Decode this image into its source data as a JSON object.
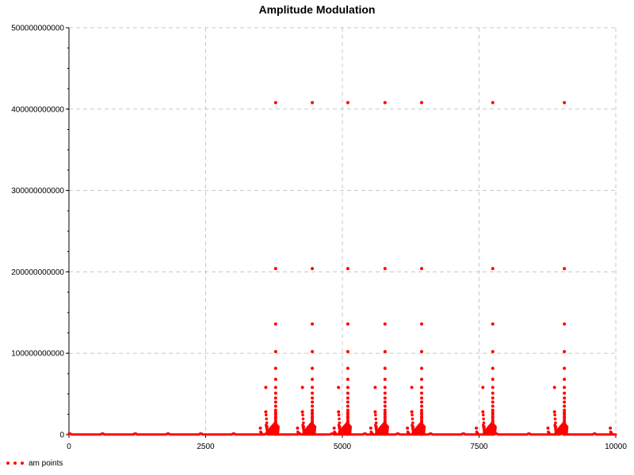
{
  "chart_data": {
    "type": "scatter",
    "title": "Amplitude Modulation",
    "xlabel": "",
    "ylabel": "",
    "xlim": [
      0,
      10000
    ],
    "ylim": [
      0,
      500000000000
    ],
    "x_ticks": [
      0,
      2500,
      5000,
      7500,
      10000
    ],
    "y_ticks": [
      0,
      100000000000,
      200000000000,
      300000000000,
      400000000000,
      500000000000
    ],
    "x_tick_labels": [
      "0",
      "2500",
      "5000",
      "7500",
      "10000"
    ],
    "y_tick_labels": [
      "0",
      "100000000000",
      "200000000000",
      "300000000000",
      "400000000000",
      "500000000000"
    ],
    "grid": true,
    "legend_position": "bottom-left",
    "color": "#ff0000",
    "series": [
      {
        "name": "am points",
        "clusters_x": [
          3780,
          4450,
          5100,
          5780,
          6450,
          7750,
          9060
        ],
        "spike_values": [
          408000000000,
          204000000000,
          136000000000,
          102000000000,
          81500000000,
          68000000000,
          58000000000,
          51000000000,
          45000000000,
          40000000000,
          35000000000,
          30000000000,
          27000000000,
          25000000000,
          22000000000,
          20000000000,
          17000000000,
          15000000000,
          13000000000,
          11000000000,
          9000000000,
          7500000000,
          6000000000,
          4500000000,
          3000000000,
          2000000000,
          1000000000,
          500000000
        ],
        "secondary_spikes": [
          {
            "x": 3600,
            "y": 58000000000
          },
          {
            "x": 4270,
            "y": 58000000000
          },
          {
            "x": 4930,
            "y": 58000000000
          },
          {
            "x": 5600,
            "y": 58000000000
          },
          {
            "x": 6270,
            "y": 58000000000
          },
          {
            "x": 7570,
            "y": 58000000000
          },
          {
            "x": 8880,
            "y": 58000000000
          },
          {
            "x": 3600,
            "y": 28000000000
          },
          {
            "x": 4270,
            "y": 28000000000
          },
          {
            "x": 4930,
            "y": 28000000000
          },
          {
            "x": 5600,
            "y": 28000000000
          },
          {
            "x": 6270,
            "y": 28000000000
          },
          {
            "x": 7570,
            "y": 28000000000
          },
          {
            "x": 8880,
            "y": 28000000000
          },
          {
            "x": 3500,
            "y": 8000000000
          },
          {
            "x": 4180,
            "y": 8000000000
          },
          {
            "x": 4850,
            "y": 8000000000
          },
          {
            "x": 5520,
            "y": 8000000000
          },
          {
            "x": 6190,
            "y": 8000000000
          },
          {
            "x": 7450,
            "y": 8000000000
          },
          {
            "x": 8760,
            "y": 8000000000
          },
          {
            "x": 9900,
            "y": 8000000000
          }
        ]
      }
    ]
  }
}
